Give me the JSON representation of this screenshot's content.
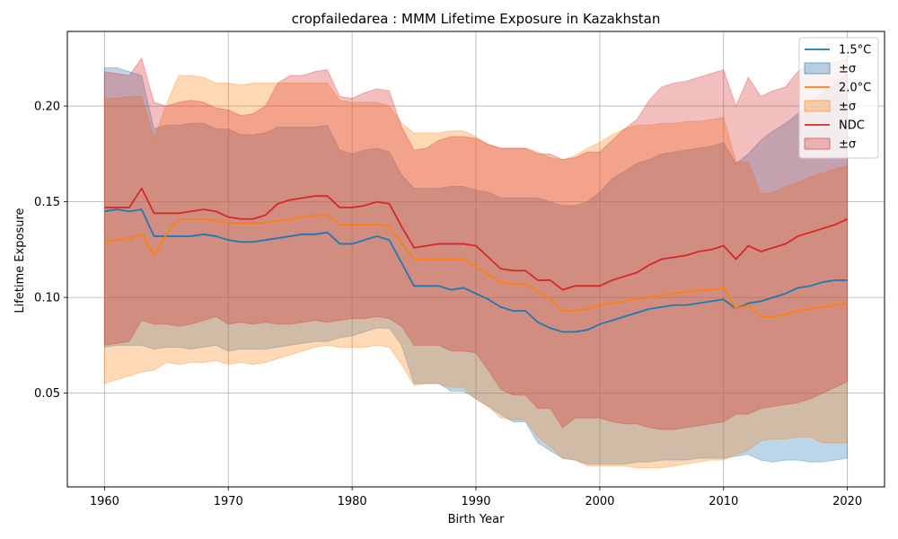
{
  "chart_data": {
    "type": "line",
    "title": "cropfailedarea : MMM Lifetime Exposure in Kazakhstan",
    "xlabel": "Birth Year",
    "ylabel": "Lifetime Exposure",
    "xlim": [
      1957,
      2023
    ],
    "ylim": [
      0.001,
      0.239
    ],
    "xticks": [
      1960,
      1970,
      1980,
      1990,
      2000,
      2010,
      2020
    ],
    "yticks": [
      0.05,
      0.1,
      0.15,
      0.2
    ],
    "ytick_labels": [
      "0.05",
      "0.10",
      "0.15",
      "0.20"
    ],
    "grid": true,
    "legend_position": "top-right",
    "x": [
      1960,
      1961,
      1962,
      1963,
      1964,
      1965,
      1966,
      1967,
      1968,
      1969,
      1970,
      1971,
      1972,
      1973,
      1974,
      1975,
      1976,
      1977,
      1978,
      1979,
      1980,
      1981,
      1982,
      1983,
      1984,
      1985,
      1986,
      1987,
      1988,
      1989,
      1990,
      1991,
      1992,
      1993,
      1994,
      1995,
      1996,
      1997,
      1998,
      1999,
      2000,
      2001,
      2002,
      2003,
      2004,
      2005,
      2006,
      2007,
      2008,
      2009,
      2010,
      2011,
      2012,
      2013,
      2014,
      2015,
      2016,
      2017,
      2018,
      2019,
      2020
    ],
    "series": [
      {
        "name": "1.5°C",
        "band_label": "±σ",
        "color": "#1f77b4",
        "fill": "#1f77b4",
        "fill_alpha": 0.3,
        "values": [
          0.145,
          0.146,
          0.145,
          0.146,
          0.132,
          0.132,
          0.132,
          0.132,
          0.133,
          0.132,
          0.13,
          0.129,
          0.129,
          0.13,
          0.131,
          0.132,
          0.133,
          0.133,
          0.134,
          0.128,
          0.128,
          0.13,
          0.132,
          0.13,
          0.118,
          0.106,
          0.106,
          0.106,
          0.104,
          0.105,
          0.102,
          0.099,
          0.095,
          0.093,
          0.093,
          0.087,
          0.084,
          0.082,
          0.082,
          0.083,
          0.086,
          0.088,
          0.09,
          0.092,
          0.094,
          0.095,
          0.096,
          0.096,
          0.097,
          0.098,
          0.099,
          0.094,
          0.097,
          0.098,
          0.1,
          0.102,
          0.105,
          0.106,
          0.108,
          0.109,
          0.109
        ],
        "upper": [
          0.22,
          0.22,
          0.218,
          0.216,
          0.188,
          0.19,
          0.19,
          0.191,
          0.191,
          0.188,
          0.188,
          0.185,
          0.185,
          0.186,
          0.189,
          0.189,
          0.189,
          0.189,
          0.19,
          0.177,
          0.175,
          0.177,
          0.178,
          0.176,
          0.164,
          0.157,
          0.157,
          0.157,
          0.158,
          0.158,
          0.156,
          0.155,
          0.152,
          0.152,
          0.152,
          0.152,
          0.15,
          0.148,
          0.148,
          0.15,
          0.155,
          0.162,
          0.166,
          0.17,
          0.172,
          0.175,
          0.176,
          0.177,
          0.178,
          0.179,
          0.181,
          0.17,
          0.175,
          0.182,
          0.187,
          0.191,
          0.196,
          0.202,
          0.207,
          0.212,
          0.217
        ],
        "lower": [
          0.074,
          0.075,
          0.075,
          0.075,
          0.073,
          0.074,
          0.074,
          0.073,
          0.074,
          0.075,
          0.072,
          0.073,
          0.073,
          0.073,
          0.074,
          0.075,
          0.076,
          0.077,
          0.077,
          0.079,
          0.08,
          0.082,
          0.084,
          0.084,
          0.075,
          0.055,
          0.055,
          0.055,
          0.051,
          0.051,
          0.047,
          0.043,
          0.039,
          0.035,
          0.035,
          0.024,
          0.02,
          0.016,
          0.015,
          0.013,
          0.013,
          0.013,
          0.013,
          0.014,
          0.014,
          0.015,
          0.015,
          0.015,
          0.016,
          0.016,
          0.016,
          0.017,
          0.018,
          0.015,
          0.014,
          0.015,
          0.015,
          0.014,
          0.014,
          0.015,
          0.016
        ]
      },
      {
        "name": "2.0°C",
        "band_label": "±σ",
        "color": "#ff7f0e",
        "fill": "#ff7f0e",
        "fill_alpha": 0.3,
        "values": [
          0.129,
          0.13,
          0.131,
          0.133,
          0.122,
          0.133,
          0.141,
          0.141,
          0.141,
          0.14,
          0.139,
          0.139,
          0.139,
          0.139,
          0.14,
          0.141,
          0.142,
          0.143,
          0.143,
          0.138,
          0.138,
          0.138,
          0.138,
          0.137,
          0.128,
          0.12,
          0.12,
          0.12,
          0.12,
          0.12,
          0.116,
          0.112,
          0.108,
          0.107,
          0.107,
          0.103,
          0.099,
          0.093,
          0.093,
          0.094,
          0.096,
          0.097,
          0.098,
          0.099,
          0.1,
          0.101,
          0.102,
          0.103,
          0.104,
          0.104,
          0.105,
          0.094,
          0.096,
          0.09,
          0.09,
          0.091,
          0.093,
          0.094,
          0.095,
          0.096,
          0.097
        ],
        "upper": [
          0.204,
          0.204,
          0.205,
          0.205,
          0.183,
          0.201,
          0.216,
          0.216,
          0.215,
          0.212,
          0.212,
          0.211,
          0.212,
          0.212,
          0.212,
          0.212,
          0.212,
          0.212,
          0.212,
          0.203,
          0.202,
          0.202,
          0.202,
          0.2,
          0.191,
          0.186,
          0.186,
          0.186,
          0.187,
          0.187,
          0.184,
          0.18,
          0.178,
          0.178,
          0.178,
          0.176,
          0.173,
          0.172,
          0.174,
          0.178,
          0.181,
          0.185,
          0.188,
          0.19,
          0.19,
          0.191,
          0.191,
          0.192,
          0.192,
          0.193,
          0.194,
          0.171,
          0.171,
          0.154,
          0.155,
          0.158,
          0.16,
          0.163,
          0.165,
          0.167,
          0.169
        ],
        "lower": [
          0.055,
          0.057,
          0.059,
          0.061,
          0.062,
          0.066,
          0.065,
          0.066,
          0.066,
          0.067,
          0.065,
          0.066,
          0.065,
          0.066,
          0.068,
          0.07,
          0.072,
          0.074,
          0.075,
          0.074,
          0.074,
          0.074,
          0.075,
          0.074,
          0.065,
          0.054,
          0.055,
          0.055,
          0.053,
          0.053,
          0.047,
          0.043,
          0.037,
          0.036,
          0.036,
          0.027,
          0.022,
          0.016,
          0.015,
          0.012,
          0.012,
          0.012,
          0.012,
          0.011,
          0.011,
          0.011,
          0.012,
          0.013,
          0.014,
          0.015,
          0.015,
          0.018,
          0.02,
          0.025,
          0.026,
          0.026,
          0.027,
          0.027,
          0.024,
          0.024,
          0.024
        ]
      },
      {
        "name": "NDC",
        "band_label": "±σ",
        "color": "#d62728",
        "fill": "#d62728",
        "fill_alpha": 0.3,
        "values": [
          0.147,
          0.147,
          0.147,
          0.157,
          0.144,
          0.144,
          0.144,
          0.145,
          0.146,
          0.145,
          0.142,
          0.141,
          0.141,
          0.143,
          0.149,
          0.151,
          0.152,
          0.153,
          0.153,
          0.147,
          0.147,
          0.148,
          0.15,
          0.149,
          0.137,
          0.126,
          0.127,
          0.128,
          0.128,
          0.128,
          0.127,
          0.121,
          0.115,
          0.114,
          0.114,
          0.109,
          0.109,
          0.104,
          0.106,
          0.106,
          0.106,
          0.109,
          0.111,
          0.113,
          0.117,
          0.12,
          0.121,
          0.122,
          0.124,
          0.125,
          0.127,
          0.12,
          0.127,
          0.124,
          0.126,
          0.128,
          0.132,
          0.134,
          0.136,
          0.138,
          0.141
        ],
        "upper": [
          0.218,
          0.217,
          0.216,
          0.225,
          0.202,
          0.2,
          0.202,
          0.203,
          0.202,
          0.199,
          0.198,
          0.195,
          0.196,
          0.2,
          0.212,
          0.216,
          0.216,
          0.218,
          0.219,
          0.205,
          0.204,
          0.207,
          0.209,
          0.208,
          0.189,
          0.177,
          0.178,
          0.182,
          0.184,
          0.184,
          0.183,
          0.18,
          0.178,
          0.178,
          0.178,
          0.175,
          0.175,
          0.172,
          0.173,
          0.176,
          0.176,
          0.182,
          0.188,
          0.193,
          0.203,
          0.21,
          0.212,
          0.213,
          0.215,
          0.217,
          0.219,
          0.2,
          0.215,
          0.205,
          0.208,
          0.21,
          0.218,
          0.222,
          0.222,
          0.223,
          0.225
        ],
        "lower": [
          0.075,
          0.076,
          0.077,
          0.088,
          0.086,
          0.086,
          0.085,
          0.086,
          0.088,
          0.09,
          0.086,
          0.087,
          0.086,
          0.087,
          0.086,
          0.086,
          0.087,
          0.088,
          0.087,
          0.088,
          0.089,
          0.089,
          0.09,
          0.089,
          0.085,
          0.075,
          0.075,
          0.075,
          0.072,
          0.072,
          0.071,
          0.062,
          0.052,
          0.049,
          0.049,
          0.042,
          0.042,
          0.032,
          0.037,
          0.037,
          0.037,
          0.035,
          0.034,
          0.034,
          0.032,
          0.031,
          0.031,
          0.032,
          0.033,
          0.034,
          0.035,
          0.039,
          0.039,
          0.042,
          0.043,
          0.044,
          0.045,
          0.047,
          0.05,
          0.053,
          0.056
        ]
      }
    ]
  }
}
